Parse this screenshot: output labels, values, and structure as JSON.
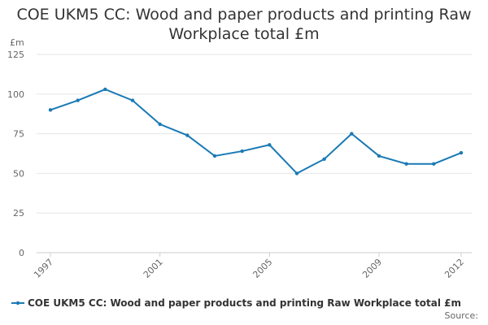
{
  "chart_data": {
    "type": "line",
    "title": "COE UKM5 CC: Wood and paper products and printing Raw Workplace total £m",
    "y_label": "£m",
    "source": "Source:",
    "x": [
      1997,
      1998,
      1999,
      2000,
      2001,
      2002,
      2003,
      2004,
      2005,
      2006,
      2007,
      2008,
      2009,
      2010,
      2011,
      2012
    ],
    "xlim": [
      1997,
      2012
    ],
    "xticks": [
      1997,
      2001,
      2005,
      2009,
      2012
    ],
    "ylim": [
      0,
      125
    ],
    "yticks": [
      0,
      25,
      50,
      75,
      100,
      125
    ],
    "grid": true,
    "series": [
      {
        "name": "COE UKM5 CC: Wood and paper products and printing Raw Workplace total £m",
        "color": "#1a7ab5",
        "values": [
          90,
          96,
          103,
          96,
          81,
          74,
          61,
          64,
          68,
          50,
          59,
          75,
          61,
          56,
          56,
          63
        ]
      }
    ]
  }
}
